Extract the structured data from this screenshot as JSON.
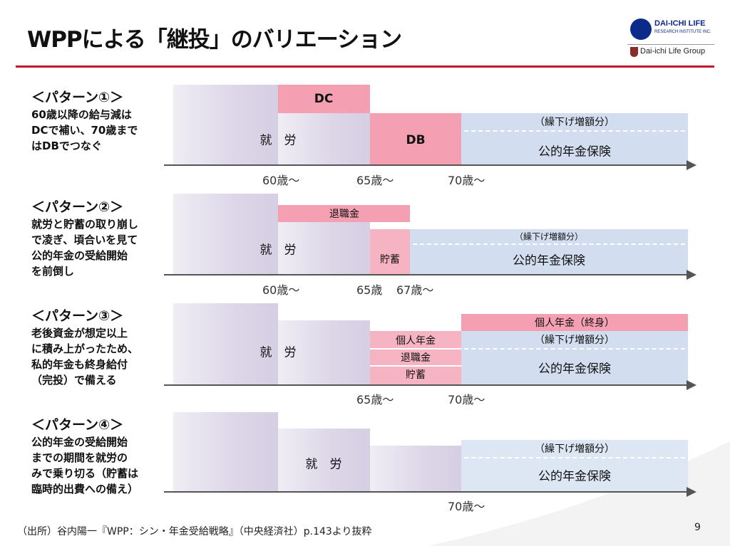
{
  "title": "WPPによる「継投」のバリエーション",
  "logo": {
    "company": "DAI-ICHI LIFE",
    "institute": "RESEARCH INSTITUTE INC.",
    "group": "Dai-ichi Life Group",
    "brand_color": "#0b2a8a"
  },
  "colors": {
    "accent_line": "#c0182a",
    "pink": "#f4a0b2",
    "blue": "#d2def0",
    "work": "#dcd6e8"
  },
  "patterns": [
    {
      "title": "＜パターン①＞",
      "description": "60歳以降の給与減は\nDCで補い、70歳まで\nはDBでつなぐ",
      "blocks": {
        "work": "就　労",
        "dc": "DC",
        "db": "DB",
        "deferral": "（繰下げ増額分）",
        "pension": "公的年金保険"
      },
      "ages": [
        "60歳～",
        "65歳～",
        "70歳～"
      ]
    },
    {
      "title": "＜パターン②＞",
      "description": "就労と貯蓄の取り崩し\nで凌ぎ、頃合いを見て\n公的年金の受給開始\nを前倒し",
      "blocks": {
        "work": "就　労",
        "retirement": "退職金",
        "savings": "貯蓄",
        "deferral": "（繰下げ増額分）",
        "pension": "公的年金保険"
      },
      "ages": [
        "60歳～",
        "65歳",
        "67歳～"
      ]
    },
    {
      "title": "＜パターン③＞",
      "description": "老後資金が想定以上\nに積み上がったため、\n私的年金も終身給付\n（完投）で備える",
      "blocks": {
        "work": "就　労",
        "private": "個人年金",
        "retirement": "退職金",
        "savings": "貯蓄",
        "lifetime": "個人年金（終身）",
        "deferral": "（繰下げ増額分）",
        "pension": "公的年金保険"
      },
      "ages": [
        "65歳～",
        "70歳～"
      ]
    },
    {
      "title": "＜パターン④＞",
      "description": "公的年金の受給開始\nまでの期間を就労の\nみで乗り切る（貯蓄は\n臨時的出費への備え）",
      "blocks": {
        "work": "就　労",
        "deferral": "（繰下げ増額分）",
        "pension": "公的年金保険"
      },
      "ages": [
        "70歳～"
      ]
    }
  ],
  "source": "（出所）谷内陽一『WPP：シン・年金受給戦略』（中央経済社）p.143より抜粋",
  "page_number": "9"
}
